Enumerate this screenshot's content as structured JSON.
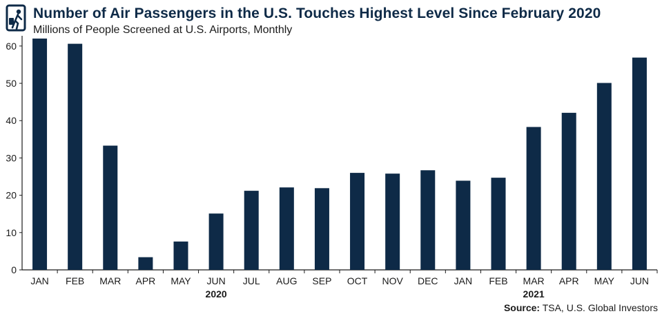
{
  "header": {
    "title": "Number of Air Passengers in the U.S. Touches Highest Level Since February 2020",
    "subtitle": "Millions of People Screened at U.S. Airports, Monthly"
  },
  "footer": {
    "source_label": "Source:",
    "source_text": "TSA, U.S. Global Investors"
  },
  "colors": {
    "bar": "#0e2a47",
    "title": "#0e2a47",
    "axis": "#1a1a1a"
  },
  "icons": {
    "logo": "traveler-with-luggage-icon"
  },
  "chart_data": {
    "type": "bar",
    "title": "Number of Air Passengers in the U.S. Touches Highest Level Since February 2020",
    "subtitle": "Millions of People Screened at U.S. Airports, Monthly",
    "categories": [
      "JAN",
      "FEB",
      "MAR",
      "APR",
      "MAY",
      "JUN",
      "JUL",
      "AUG",
      "SEP",
      "OCT",
      "NOV",
      "DEC",
      "JAN",
      "FEB",
      "MAR",
      "APR",
      "MAY",
      "JUN"
    ],
    "values": [
      62,
      60.6,
      33.3,
      3.4,
      7.6,
      15.1,
      21.2,
      22.1,
      21.9,
      26.0,
      25.8,
      26.7,
      23.9,
      24.7,
      38.3,
      42.1,
      50.1,
      56.9
    ],
    "year_labels": [
      {
        "label": "2020",
        "at_index": 5
      },
      {
        "label": "2021",
        "at_index": 14
      }
    ],
    "yticks": [
      0,
      10,
      20,
      30,
      40,
      50,
      60
    ],
    "ylim": [
      0,
      62
    ],
    "xlabel": "",
    "ylabel": "",
    "grid": false,
    "legend": "none"
  }
}
